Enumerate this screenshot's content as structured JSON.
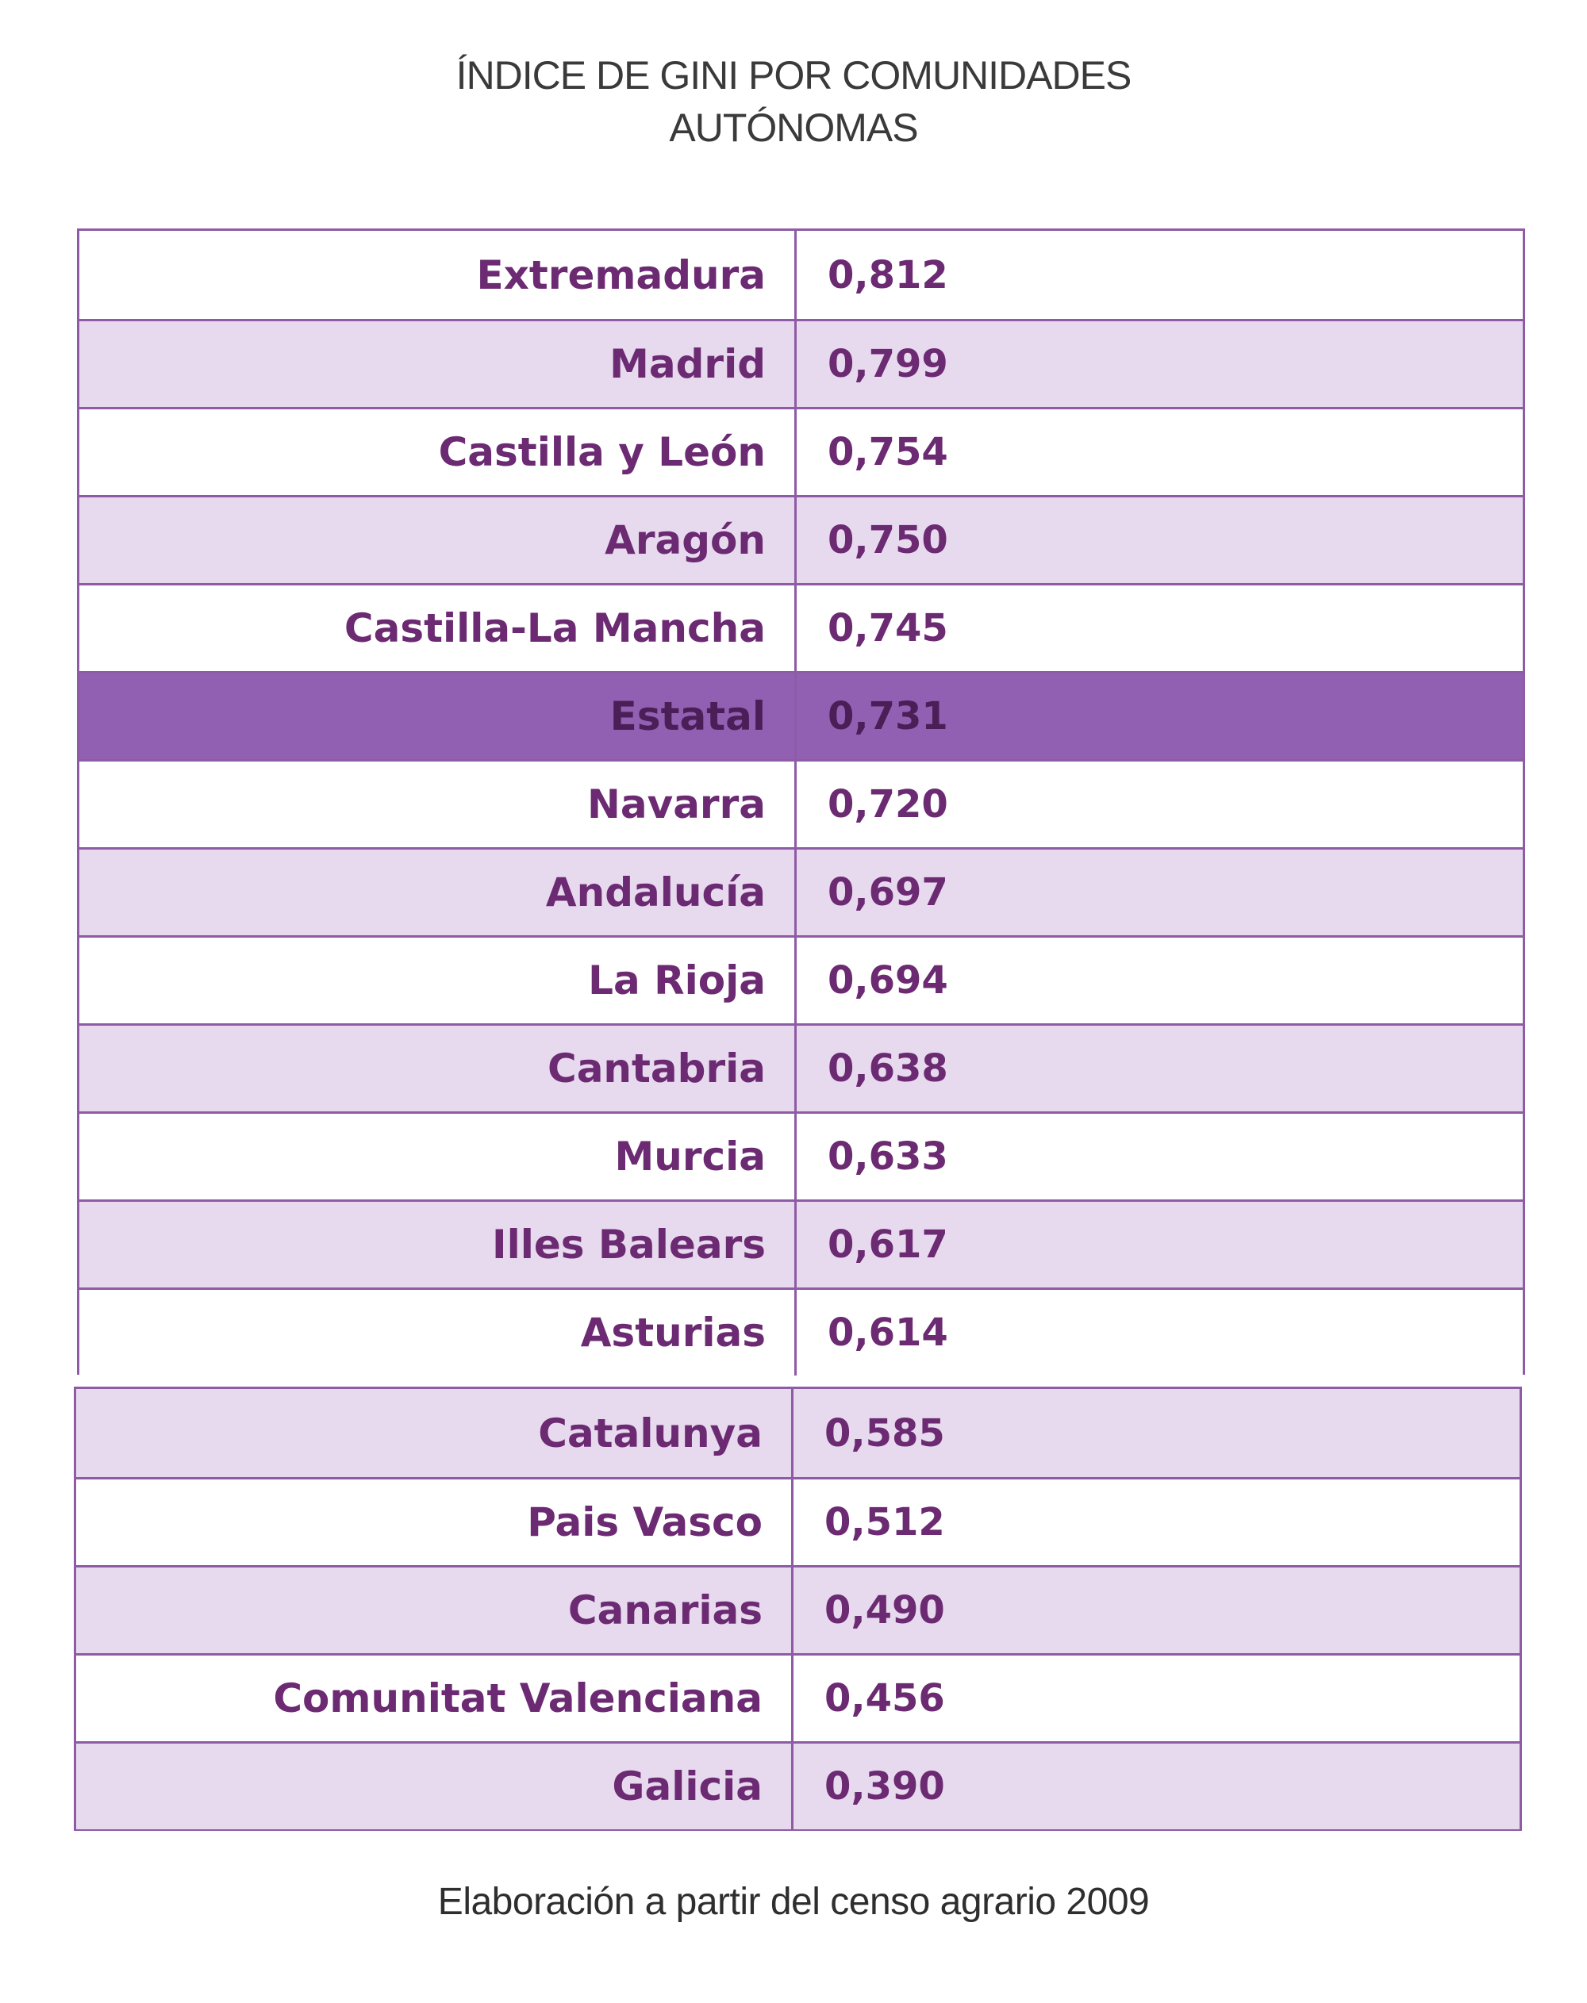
{
  "title_lines": [
    "ÍNDICE DE GINI POR COMUNIDADES",
    "AUTÓNOMAS"
  ],
  "footer": "Elaboración a partir del censo agrario 2009",
  "colors": {
    "border": "#8e5ba6",
    "row_alt": "#e7d9ee",
    "highlight": "#9160b2",
    "text": "#6b2a72"
  },
  "chart_data": {
    "type": "table",
    "title": "ÍNDICE DE GINI POR COMUNIDADES AUTÓNOMAS",
    "highlighted_row": "Estatal",
    "rows": [
      {
        "name": "Extremadura",
        "value": "0,812"
      },
      {
        "name": "Madrid",
        "value": "0,799"
      },
      {
        "name": "Castilla y León",
        "value": "0,754"
      },
      {
        "name": "Aragón",
        "value": "0,750"
      },
      {
        "name": "Castilla-La Mancha",
        "value": "0,745"
      },
      {
        "name": "Estatal",
        "value": "0,731"
      },
      {
        "name": "Navarra",
        "value": "0,720"
      },
      {
        "name": "Andalucía",
        "value": "0,697"
      },
      {
        "name": "La Rioja",
        "value": "0,694"
      },
      {
        "name": "Cantabria",
        "value": "0,638"
      },
      {
        "name": "Murcia",
        "value": "0,633"
      },
      {
        "name": "Illes Balears",
        "value": "0,617"
      },
      {
        "name": "Asturias",
        "value": "0,614"
      },
      {
        "name": "Catalunya",
        "value": "0,585"
      },
      {
        "name": "Pais Vasco",
        "value": "0,512"
      },
      {
        "name": "Canarias",
        "value": "0,490"
      },
      {
        "name": "Comunitat Valenciana",
        "value": "0,456"
      },
      {
        "name": "Galicia",
        "value": "0,390"
      }
    ]
  }
}
